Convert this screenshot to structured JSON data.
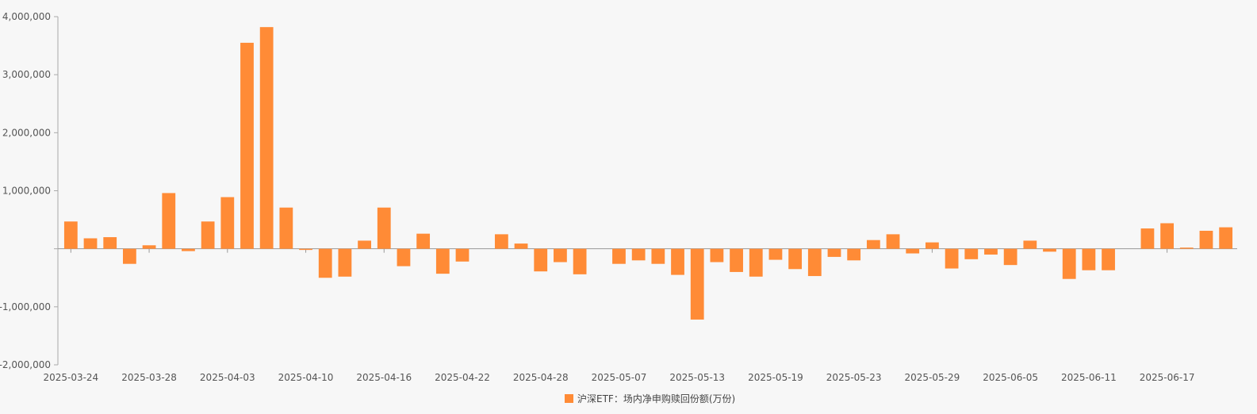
{
  "colors": {
    "bar": "#ff8b36",
    "axis": "#aaaaaa",
    "zero_line": "#999999"
  },
  "chart_data": {
    "type": "bar",
    "legend_position": "bottom-center",
    "grid": false,
    "ylim": [
      -2000000,
      4000000
    ],
    "yticks": [
      {
        "value": 4000000,
        "label": "4,000,000"
      },
      {
        "value": 3000000,
        "label": "3,000,000"
      },
      {
        "value": 2000000,
        "label": "2,000,000"
      },
      {
        "value": 1000000,
        "label": "1,000,000"
      },
      {
        "value": 0,
        "label": ""
      },
      {
        "value": -1000000,
        "label": "-1,000,000"
      },
      {
        "value": -2000000,
        "label": "-2,000,000"
      }
    ],
    "xtick_labels": [
      {
        "index": 0,
        "label": "2025-03-24"
      },
      {
        "index": 4,
        "label": "2025-03-28"
      },
      {
        "index": 8,
        "label": "2025-04-03"
      },
      {
        "index": 12,
        "label": "2025-04-10"
      },
      {
        "index": 16,
        "label": "2025-04-16"
      },
      {
        "index": 20,
        "label": "2025-04-22"
      },
      {
        "index": 24,
        "label": "2025-04-28"
      },
      {
        "index": 28,
        "label": "2025-05-07"
      },
      {
        "index": 32,
        "label": "2025-05-13"
      },
      {
        "index": 36,
        "label": "2025-05-19"
      },
      {
        "index": 40,
        "label": "2025-05-23"
      },
      {
        "index": 44,
        "label": "2025-05-29"
      },
      {
        "index": 48,
        "label": "2025-06-05"
      },
      {
        "index": 52,
        "label": "2025-06-11"
      },
      {
        "index": 56,
        "label": "2025-06-17"
      }
    ],
    "series": [
      {
        "name": "沪深ETF：场内净申购赎回份额(万份)",
        "values": [
          470000,
          180000,
          200000,
          -260000,
          60000,
          960000,
          -40000,
          470000,
          890000,
          3550000,
          3820000,
          710000,
          -20000,
          -500000,
          -480000,
          140000,
          710000,
          -300000,
          260000,
          -430000,
          -220000,
          0,
          250000,
          90000,
          -390000,
          -230000,
          -440000,
          0,
          -260000,
          -200000,
          -260000,
          -450000,
          -1220000,
          -230000,
          -400000,
          -480000,
          -190000,
          -350000,
          -470000,
          -140000,
          -200000,
          150000,
          250000,
          -80000,
          110000,
          -340000,
          -180000,
          -100000,
          -280000,
          140000,
          -50000,
          -520000,
          -370000,
          -370000,
          0,
          350000,
          440000,
          20000,
          310000,
          370000
        ]
      }
    ]
  }
}
